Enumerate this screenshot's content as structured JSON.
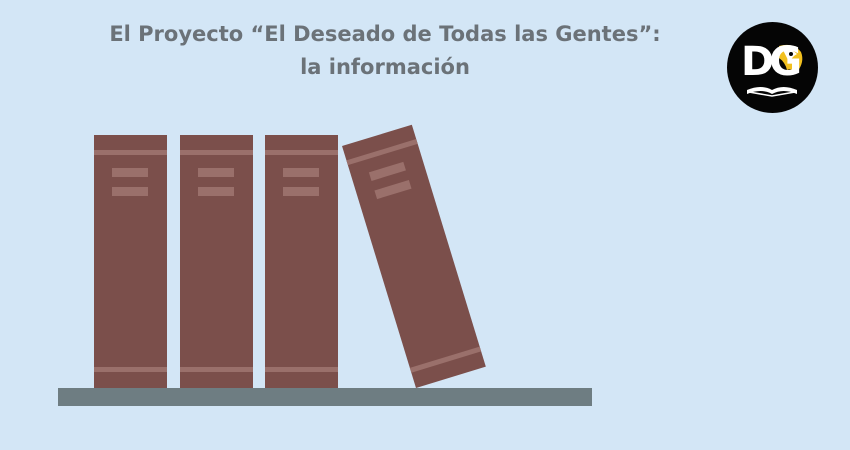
{
  "title": {
    "line1": "El Proyecto “El Deseado de Todas las Gentes”:",
    "line2": "la información"
  },
  "logo": {
    "text": "DG",
    "icon": "eagle-book-logo-icon"
  },
  "colors": {
    "background": "#d3e6f6",
    "title": "#6b7278",
    "book": "#7b4f4b",
    "book_band": "#9a706b",
    "shelf": "#6e7d82",
    "logo_bg": "#050505",
    "logo_accent": "#f2c01f"
  },
  "books": [
    {
      "name": "book-1",
      "tilted": false
    },
    {
      "name": "book-2",
      "tilted": false
    },
    {
      "name": "book-3",
      "tilted": false
    },
    {
      "name": "book-4",
      "tilted": true
    }
  ]
}
